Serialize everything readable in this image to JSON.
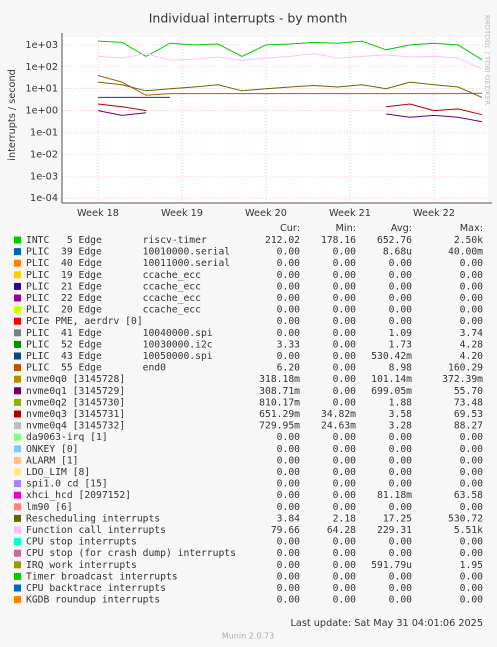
{
  "chart_data": {
    "type": "line",
    "title": "Individual interrupts - by month",
    "y_label": "interrupts / second",
    "watermark": "RRDTOOL / TOBI OETIKER",
    "log_scale": true,
    "grid": true,
    "xlim": [
      0,
      35.5
    ],
    "xticks": [
      {
        "value": 3,
        "label": "Week 18"
      },
      {
        "value": 10,
        "label": "Week 19"
      },
      {
        "value": 17,
        "label": "Week 20"
      },
      {
        "value": 24,
        "label": "Week 21"
      },
      {
        "value": 31,
        "label": "Week 22"
      }
    ],
    "ylim": [
      6e-05,
      2300
    ],
    "yticks": [
      {
        "value": 1000,
        "label": "1e+03"
      },
      {
        "value": 100,
        "label": "1e+02"
      },
      {
        "value": 10,
        "label": "1e+01"
      },
      {
        "value": 1,
        "label": "1e+00"
      },
      {
        "value": 0.1,
        "label": "1e-01"
      },
      {
        "value": 0.01,
        "label": "1e-02"
      },
      {
        "value": 0.001,
        "label": "1e-03"
      },
      {
        "value": 0.0001,
        "label": "1e-04"
      }
    ],
    "x": [
      3,
      5,
      7,
      9,
      11,
      13,
      15,
      17,
      19,
      21,
      23,
      25,
      27,
      29,
      31,
      33,
      35
    ],
    "columns": [
      "Cur:",
      "Min:",
      "Avg:",
      "Max:"
    ],
    "series": [
      {
        "name": "INTC   5 Edge       riscv-timer",
        "color": "#00cc00",
        "stats": [
          "212.02",
          "178.16",
          "652.76",
          "2.50k"
        ],
        "values": [
          1500,
          1300,
          300,
          1200,
          1000,
          1100,
          300,
          1000,
          1100,
          1300,
          1200,
          1500,
          600,
          1000,
          1200,
          1000,
          212
        ]
      },
      {
        "name": "PLIC  39 Edge       10010000.serial",
        "color": "#0066b3",
        "stats": [
          "0.00",
          "0.00",
          "8.68u",
          "40.00m"
        ]
      },
      {
        "name": "PLIC  40 Edge       10011000.serial",
        "color": "#ff8000",
        "stats": [
          "0.00",
          "0.00",
          "0.00",
          "0.00"
        ]
      },
      {
        "name": "PLIC  19 Edge       ccache_ecc",
        "color": "#ffcc00",
        "stats": [
          "0.00",
          "0.00",
          "0.00",
          "0.00"
        ]
      },
      {
        "name": "PLIC  21 Edge       ccache_ecc",
        "color": "#330099",
        "stats": [
          "0.00",
          "0.00",
          "0.00",
          "0.00"
        ]
      },
      {
        "name": "PLIC  22 Edge       ccache_ecc",
        "color": "#990099",
        "stats": [
          "0.00",
          "0.00",
          "0.00",
          "0.00"
        ]
      },
      {
        "name": "PLIC  20 Edge       ccache_ecc",
        "color": "#ccff00",
        "stats": [
          "0.00",
          "0.00",
          "0.00",
          "0.00"
        ]
      },
      {
        "name": "PCIe PME, aerdrv [0]",
        "color": "#ff0000",
        "stats": [
          "0.00",
          "0.00",
          "0.00",
          "0.00"
        ]
      },
      {
        "name": "PLIC  41 Edge       10040000.spi",
        "color": "#808080",
        "stats": [
          "0.00",
          "0.00",
          "1.09",
          "3.74"
        ]
      },
      {
        "name": "PLIC  52 Edge       10030000.i2c",
        "color": "#008f00",
        "stats": [
          "3.33",
          "0.00",
          "1.73",
          "4.28"
        ]
      },
      {
        "name": "PLIC  43 Edge       10050000.spi",
        "color": "#00487d",
        "stats": [
          "0.00",
          "0.00",
          "530.42m",
          "4.20"
        ],
        "values": [
          4,
          4,
          4,
          4,
          null,
          null,
          null,
          null,
          null,
          null,
          null,
          null,
          null,
          null,
          null,
          null,
          null
        ]
      },
      {
        "name": "PLIC  55 Edge       end0",
        "color": "#b35a00",
        "stats": [
          "6.20",
          "0.00",
          "8.98",
          "160.29"
        ],
        "values": [
          40,
          20,
          5,
          6,
          6,
          6,
          6,
          6,
          6,
          6,
          6,
          6,
          6,
          6,
          6,
          6,
          6.2
        ]
      },
      {
        "name": "nvme0q0 [3145728]",
        "color": "#b38f00",
        "stats": [
          "318.18m",
          "0.00",
          "101.14m",
          "372.39m"
        ]
      },
      {
        "name": "nvme0q1 [3145729]",
        "color": "#6b006b",
        "stats": [
          "308.71m",
          "0.00",
          "699.05m",
          "55.70"
        ],
        "values": [
          1,
          0.6,
          0.8,
          null,
          null,
          null,
          null,
          null,
          null,
          null,
          null,
          null,
          0.7,
          0.5,
          0.6,
          0.5,
          0.31
        ]
      },
      {
        "name": "nvme0q2 [3145730]",
        "color": "#8fb300",
        "stats": [
          "810.17m",
          "0.00",
          "1.88",
          "73.48"
        ]
      },
      {
        "name": "nvme0q3 [3145731]",
        "color": "#b30000",
        "stats": [
          "651.29m",
          "34.82m",
          "3.58",
          "69.53"
        ],
        "values": [
          2,
          1.5,
          1,
          null,
          null,
          null,
          null,
          null,
          null,
          null,
          null,
          null,
          1.5,
          2,
          1,
          1.2,
          0.65
        ]
      },
      {
        "name": "nvme0q4 [3145732]",
        "color": "#bebebe",
        "stats": [
          "729.95m",
          "24.63m",
          "3.28",
          "88.27"
        ]
      },
      {
        "name": "da9063-irq [1]",
        "color": "#80ff80",
        "stats": [
          "0.00",
          "0.00",
          "0.00",
          "0.00"
        ]
      },
      {
        "name": "ONKEY [0]",
        "color": "#80c9ff",
        "stats": [
          "0.00",
          "0.00",
          "0.00",
          "0.00"
        ]
      },
      {
        "name": "ALARM [1]",
        "color": "#ffc080",
        "stats": [
          "0.00",
          "0.00",
          "0.00",
          "0.00"
        ]
      },
      {
        "name": "LDO_LIM [8]",
        "color": "#ffe680",
        "stats": [
          "0.00",
          "0.00",
          "0.00",
          "0.00"
        ]
      },
      {
        "name": "spi1.0 cd [15]",
        "color": "#aa80ff",
        "stats": [
          "0.00",
          "0.00",
          "0.00",
          "0.00"
        ]
      },
      {
        "name": "xhci_hcd [2097152]",
        "color": "#ee00cc",
        "stats": [
          "0.00",
          "0.00",
          "81.18m",
          "63.58"
        ]
      },
      {
        "name": "lm90 [6]",
        "color": "#ff8080",
        "stats": [
          "0.00",
          "0.00",
          "0.00",
          "0.00"
        ]
      },
      {
        "name": "Rescheduling interrupts",
        "color": "#666600",
        "stats": [
          "3.84",
          "2.18",
          "17.25",
          "530.72"
        ],
        "values": [
          20,
          15,
          8,
          10,
          12,
          15,
          8,
          10,
          12,
          14,
          12,
          15,
          10,
          20,
          15,
          12,
          4
        ]
      },
      {
        "name": "Function call interrupts",
        "color": "#ffbfff",
        "stats": [
          "79.66",
          "64.28",
          "229.31",
          "5.51k"
        ],
        "values": [
          300,
          250,
          400,
          200,
          220,
          280,
          200,
          250,
          300,
          400,
          250,
          300,
          350,
          280,
          300,
          250,
          80
        ]
      },
      {
        "name": "CPU stop interrupts",
        "color": "#00ffcc",
        "stats": [
          "0.00",
          "0.00",
          "0.00",
          "0.00"
        ]
      },
      {
        "name": "CPU stop (for crash dump) interrupts",
        "color": "#cc6699",
        "stats": [
          "0.00",
          "0.00",
          "0.00",
          "0.00"
        ]
      },
      {
        "name": "IRQ work interrupts",
        "color": "#999900",
        "stats": [
          "0.00",
          "0.00",
          "591.79u",
          "1.95"
        ]
      },
      {
        "name": "Timer broadcast interrupts",
        "color": "#00cc00",
        "stats": [
          "0.00",
          "0.00",
          "0.00",
          "0.00"
        ]
      },
      {
        "name": "CPU backtrace interrupts",
        "color": "#0066b3",
        "stats": [
          "0.00",
          "0.00",
          "0.00",
          "0.00"
        ]
      },
      {
        "name": "KGDB roundup interrupts",
        "color": "#ff8000",
        "stats": [
          "0.00",
          "0.00",
          "0.00",
          "0.00"
        ]
      }
    ],
    "last_update": "Last update: Sat May 31 04:01:06 2025",
    "version": "Munin 2.0.73"
  }
}
